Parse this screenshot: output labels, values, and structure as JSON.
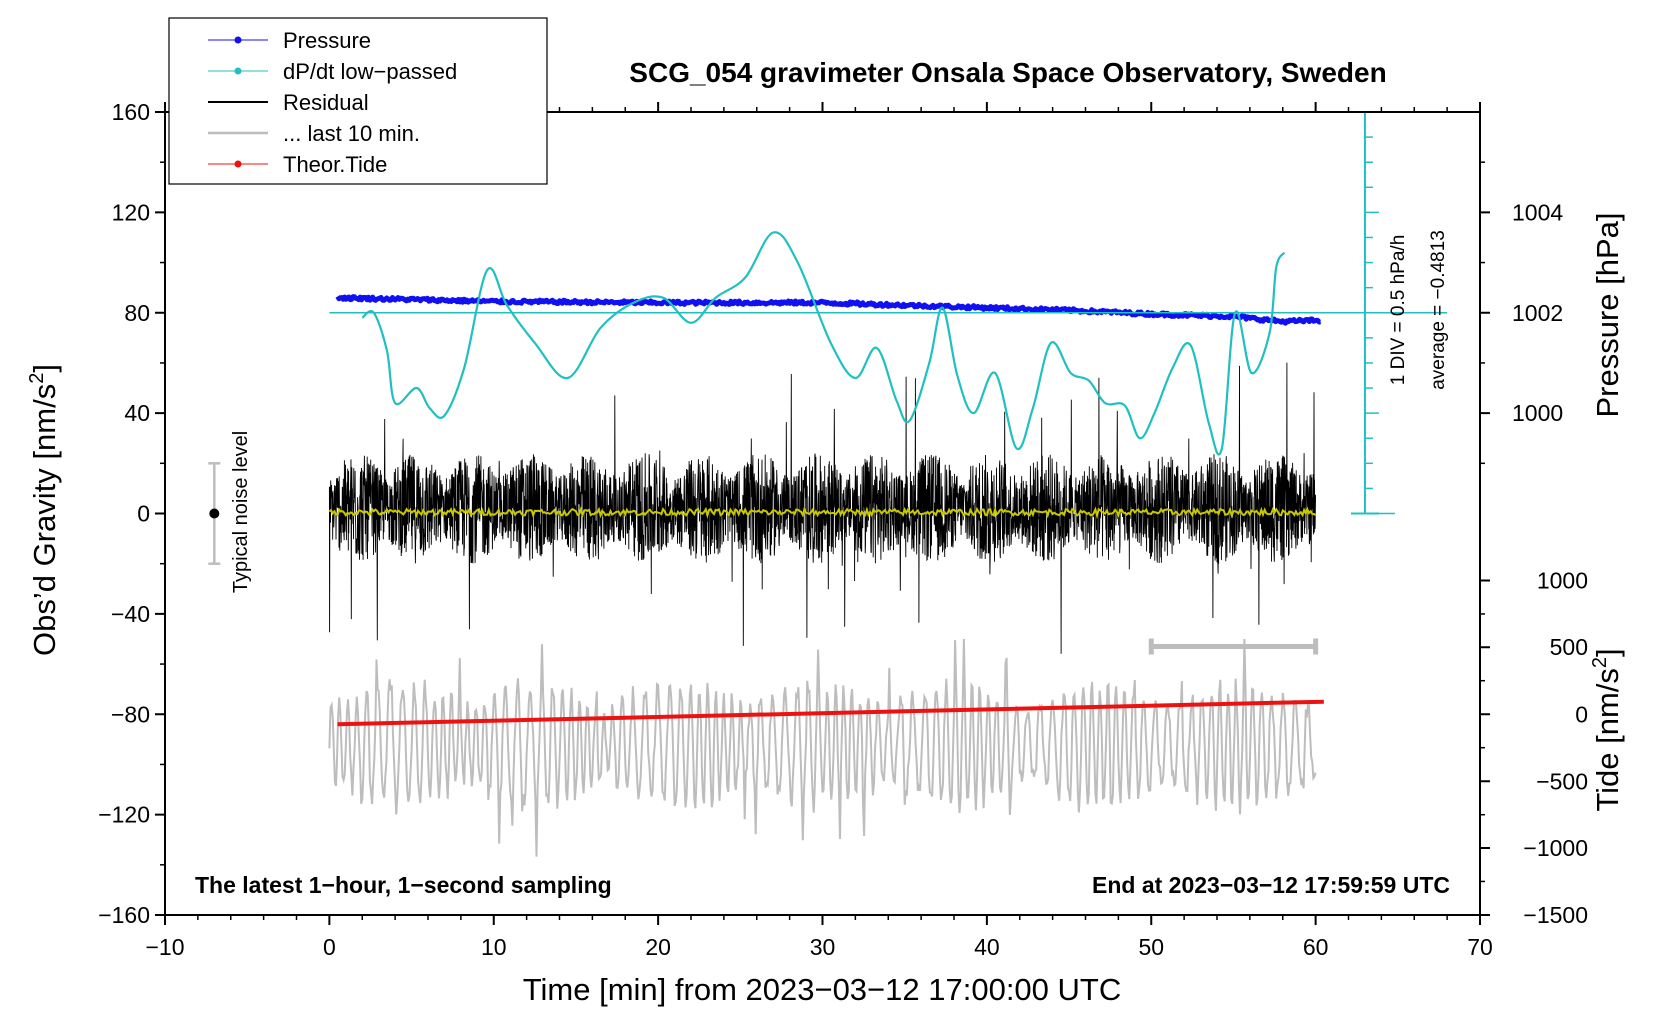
{
  "chart_data": {
    "type": "line",
    "title": "SCG_054 gravimeter Onsala Space Observatory, Sweden",
    "xlabel": "Time [min] from 2023−03−12 17:00:00 UTC",
    "ylabel_left": "Obs’d Gravity [nm/s",
    "ylabel_left_sup": "2",
    "ylabel_left_end": "]",
    "ylabel_right_top": "Pressure [hPa]",
    "ylabel_right_bottom": "Tide [nm/s",
    "ylabel_right_bottom_sup": "2",
    "ylabel_right_bottom_end": "]",
    "xlim": [
      -10,
      70
    ],
    "ylim": [
      -160,
      160
    ],
    "x_ticks": [
      -10,
      0,
      10,
      20,
      30,
      40,
      50,
      60,
      70
    ],
    "x_tick_labels": [
      "−10",
      "0",
      "10",
      "20",
      "30",
      "40",
      "50",
      "60",
      "70"
    ],
    "y_ticks": [
      160,
      120,
      80,
      40,
      0,
      -40,
      -80,
      -120,
      -160
    ],
    "y_tick_labels": [
      "160",
      "120",
      "80",
      "40",
      "0",
      "−40",
      "−80",
      "−120",
      "−160"
    ],
    "pressure_axis": {
      "ticks": [
        1004,
        1002,
        1000
      ],
      "tick_labels": [
        "1004",
        "1002",
        "1000"
      ],
      "gravity_equiv": [
        120,
        80,
        40
      ]
    },
    "tide_axis": {
      "ticks": [
        1000,
        500,
        0,
        -500,
        -1000,
        -1500
      ],
      "tick_labels": [
        "1000",
        "500",
        "0",
        "−500",
        "−1000",
        "−1500"
      ],
      "gravity_equiv": [
        -26.7,
        -53.3,
        -80,
        -106.7,
        -133.3,
        -160
      ]
    },
    "legend": {
      "placement": "top-left",
      "entries": [
        {
          "label": "Pressure",
          "color": "#1010f0",
          "marker": true
        },
        {
          "label": "dP/dt low−passed",
          "color": "#20c0c0",
          "marker": true
        },
        {
          "label": "Residual",
          "color": "#000000",
          "marker": false
        },
        {
          "label": "... last 10 min.",
          "color": "#bdbdbd",
          "marker": false
        },
        {
          "label": "Theor.Tide",
          "color": "#ee1111",
          "marker": true
        }
      ]
    },
    "series": [
      {
        "name": "Pressure",
        "color": "#1010f0",
        "x": [
          0.5,
          10,
          20,
          30,
          35,
          40,
          45,
          50,
          55,
          58,
          60.3
        ],
        "y": [
          86,
          84.5,
          84,
          84,
          83,
          82,
          81,
          79.5,
          78.5,
          76.5,
          77
        ]
      },
      {
        "name": "dP/dt low−passed",
        "color": "#20c0c0",
        "x": [
          2,
          2.7,
          3.5,
          4,
          5.3,
          6.1,
          7,
          8.2,
          9.6,
          10.8,
          12.5,
          14.5,
          16.5,
          18.5,
          20.3,
          22,
          23.5,
          25.3,
          27,
          28.5,
          30.5,
          32,
          33.3,
          34.5,
          35.3,
          36.5,
          37.3,
          38.2,
          39.2,
          40.5,
          41.8,
          42.8,
          43.9,
          45.1,
          46.2,
          47.2,
          48.4,
          49.3,
          50.2,
          51.3,
          52.4,
          53.5,
          54.3,
          55.1,
          56.1,
          57.2,
          57.6,
          58.1
        ],
        "y": [
          78,
          80,
          65,
          44,
          50,
          42,
          39,
          58,
          97,
          83,
          68,
          54,
          74,
          84,
          86,
          76,
          86,
          94,
          112,
          100,
          68,
          54,
          66,
          45,
          37,
          60,
          82,
          55,
          40,
          56,
          26,
          42,
          68,
          56,
          53,
          44,
          43,
          30,
          40,
          58,
          67,
          36,
          26,
          80,
          56,
          72,
          98,
          104
        ]
      },
      {
        "name": "Residual",
        "color": "#000000",
        "x_range": [
          0,
          60
        ],
        "amplitude_typical": 20,
        "amplitude_max": 60
      },
      {
        "name": "Residual smoothed",
        "color": "#c8c800",
        "x_range": [
          0,
          60
        ],
        "y": 0.5
      },
      {
        "name": "... last 10 min.",
        "color": "#bdbdbd",
        "x_range": [
          0,
          60
        ],
        "y_center": -92
      },
      {
        "name": "Theor.Tide",
        "color": "#ee1111",
        "x": [
          0.5,
          60.5
        ],
        "y": [
          -84,
          -75
        ]
      }
    ],
    "noise_bar": {
      "label": "Typical noise level",
      "x": -7,
      "y": 0,
      "err": 20
    },
    "last10_bar": {
      "x": [
        50,
        60
      ],
      "y": -53
    },
    "dpdt_scale": {
      "label1": "1 DIV = 0.5 hPa/h",
      "label2": "average = −0.4813",
      "x": 63,
      "y_range": [
        0,
        160
      ],
      "baseline_y": 80
    },
    "annotation_left": "The latest 1−hour, 1−second sampling",
    "annotation_right": "End at 2023−03−12 17:59:59 UTC"
  }
}
